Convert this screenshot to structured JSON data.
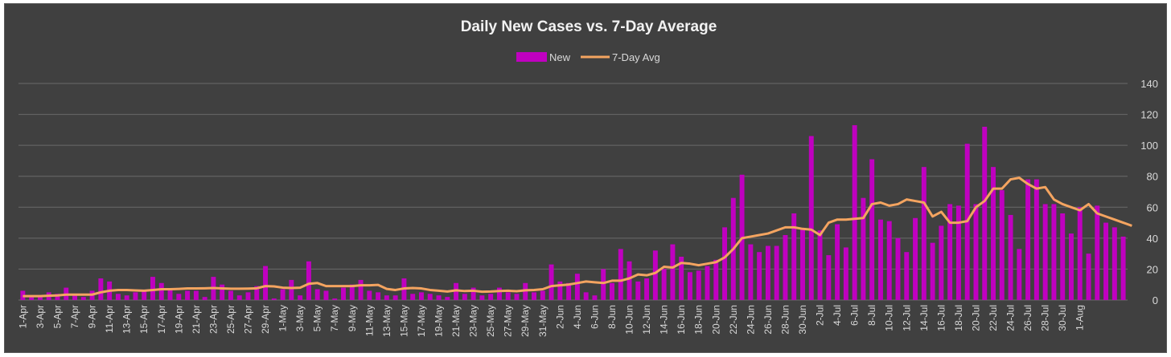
{
  "chart_data": {
    "type": "bar",
    "title": "Daily New Cases vs. 7-Day Average",
    "legend_position": "top-center",
    "grid": true,
    "ylim": [
      0,
      140
    ],
    "y_ticks": [
      "0",
      "20",
      "40",
      "60",
      "80",
      "100",
      "120",
      "140"
    ],
    "y_axis_side": "right",
    "tick_labels": [
      "1-Apr",
      "3-Apr",
      "5-Apr",
      "7-Apr",
      "9-Apr",
      "11-Apr",
      "13-Apr",
      "15-Apr",
      "17-Apr",
      "19-Apr",
      "21-Apr",
      "23-Apr",
      "25-Apr",
      "27-Apr",
      "29-Apr",
      "1-May",
      "3-May",
      "5-May",
      "7-May",
      "9-May",
      "11-May",
      "13-May",
      "15-May",
      "17-May",
      "19-May",
      "21-May",
      "23-May",
      "25-May",
      "27-May",
      "29-May",
      "31-May",
      "2-Jun",
      "4-Jun",
      "6-Jun",
      "8-Jun",
      "10-Jun",
      "12-Jun",
      "14-Jun",
      "16-Jun",
      "18-Jun",
      "20-Jun",
      "22-Jun",
      "24-Jun",
      "26-Jun",
      "28-Jun",
      "30-Jun",
      "2-Jul",
      "4-Jul",
      "6-Jul",
      "8-Jul",
      "10-Jul",
      "12-Jul",
      "14-Jul",
      "16-Jul",
      "18-Jul",
      "20-Jul",
      "22-Jul",
      "24-Jul",
      "26-Jul",
      "28-Jul",
      "30-Jul",
      "1-Aug"
    ],
    "series": [
      {
        "name": "New",
        "kind": "bar",
        "color": "#c000c0",
        "values": [
          6,
          2,
          2,
          5,
          4,
          8,
          3,
          2,
          6,
          14,
          12,
          4,
          3,
          5,
          6,
          15,
          11,
          7,
          4,
          6,
          6,
          2,
          15,
          10,
          6,
          3,
          5,
          9,
          22,
          1,
          7,
          13,
          3,
          25,
          7,
          6,
          1,
          8,
          10,
          13,
          6,
          5,
          3,
          3,
          14,
          4,
          5,
          4,
          3,
          2,
          11,
          4,
          8,
          3,
          4,
          8,
          5,
          4,
          11,
          5,
          6,
          23,
          12,
          11,
          17,
          5,
          3,
          20,
          11,
          33,
          25,
          12,
          14,
          32,
          20,
          36,
          28,
          18,
          19,
          22,
          26,
          47,
          66,
          81,
          36,
          31,
          35,
          35,
          42,
          56,
          46,
          106,
          45,
          29,
          49,
          34,
          113,
          66,
          91,
          52,
          51,
          40,
          31,
          53,
          86,
          37,
          48,
          62,
          61,
          101,
          62,
          112,
          86,
          71,
          55,
          33,
          78,
          78,
          62,
          62,
          56,
          43,
          60,
          30,
          61,
          50,
          47,
          41
        ]
      },
      {
        "name": "7-Day Avg",
        "kind": "line",
        "color": "#f4a460",
        "values": [
          2.5,
          2.5,
          2.5,
          2.8,
          3,
          3.5,
          3.5,
          3.5,
          3.5,
          5,
          6,
          6.5,
          6.5,
          6.2,
          6,
          6.5,
          7,
          7,
          7.2,
          7.5,
          7.5,
          7.6,
          7.8,
          7.5,
          7.3,
          7.3,
          7.4,
          7.6,
          9,
          8.8,
          8,
          7.8,
          8,
          10.5,
          11,
          9,
          9,
          9,
          9,
          9.5,
          9.5,
          9.8,
          7.2,
          6.5,
          7.5,
          7.8,
          7.5,
          6.5,
          6,
          5.5,
          6.3,
          5.8,
          6,
          5.4,
          5.5,
          5.8,
          6,
          5.7,
          6.3,
          6.5,
          7,
          9,
          9.5,
          10,
          11,
          12,
          11.5,
          11,
          12.5,
          12.5,
          14,
          16.5,
          16,
          17.5,
          21.5,
          21,
          24,
          23.5,
          22.5,
          23.5,
          24.5,
          27.5,
          33,
          40,
          41,
          42,
          43,
          45,
          47,
          47,
          46,
          45.5,
          42,
          50,
          52,
          52,
          52.5,
          53,
          62,
          63,
          61,
          62,
          65,
          64,
          63,
          54,
          57,
          50,
          50,
          51,
          60,
          64,
          72,
          72,
          78,
          79,
          75,
          72,
          73,
          65,
          62,
          60,
          58,
          62,
          56,
          54,
          52,
          50,
          48
        ]
      }
    ]
  }
}
